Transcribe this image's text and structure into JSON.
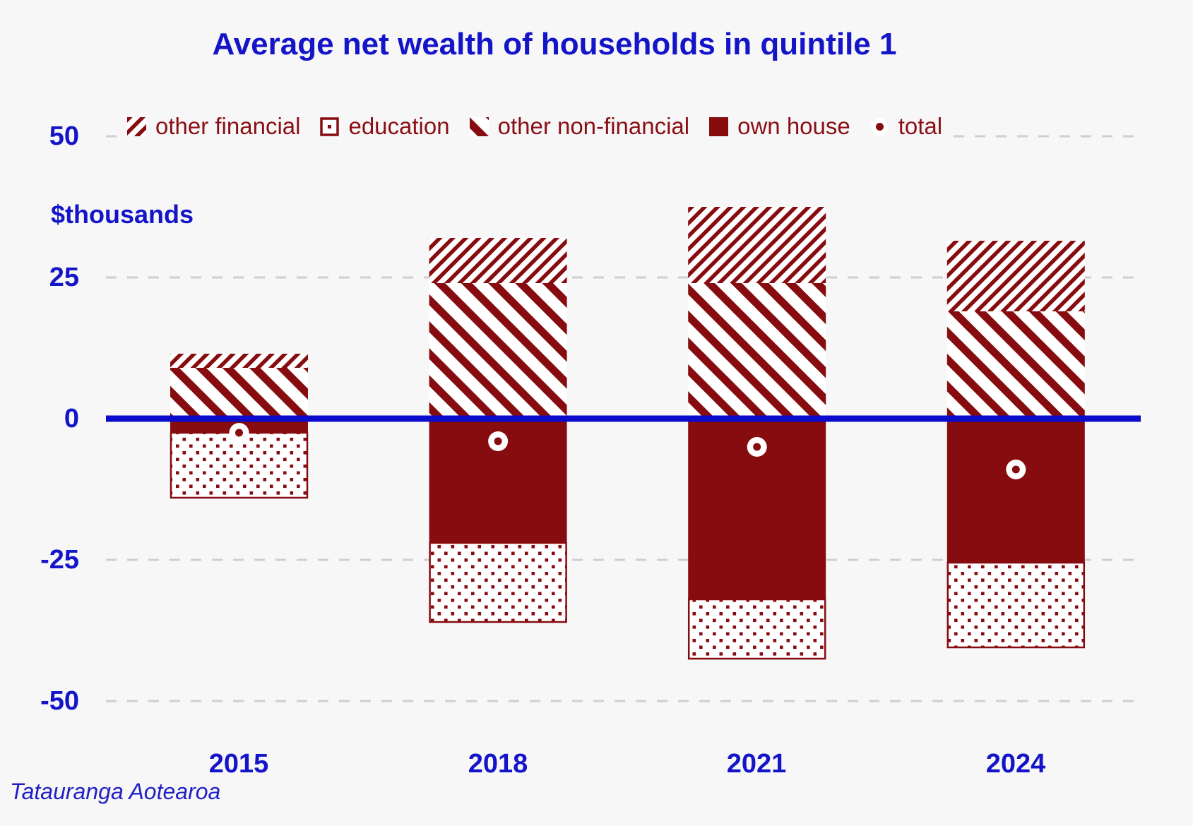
{
  "title": "Average net wealth of households in quintile 1",
  "footer": "Tatauranga Aotearoa",
  "y_axis": {
    "unit_label": "$thousands",
    "ticks": [
      "50",
      "25",
      "0",
      "-25",
      "-50"
    ]
  },
  "legend": [
    {
      "label": "other financial",
      "pattern": "diagonal-forward-hatch"
    },
    {
      "label": "education",
      "pattern": "dotted-square"
    },
    {
      "label": "other non-financial",
      "pattern": "diagonal-back-hatch"
    },
    {
      "label": "own house",
      "pattern": "solid"
    },
    {
      "label": "total",
      "pattern": "circle-marker"
    }
  ],
  "colors": {
    "accent_blue": "#1414c8",
    "zero_line_blue": "#0b0bcc",
    "maroon": "#870c10",
    "maroon_text": "#8a0f15",
    "background": "#f7f7f8",
    "gridline": "#cfcfcf",
    "pattern_background": "#ffffff"
  },
  "chart_data": {
    "type": "bar",
    "stacked": true,
    "title": "Average net wealth of households in quintile 1",
    "ylabel": "$thousands",
    "ylim": [
      -50,
      50
    ],
    "yticks": [
      50,
      25,
      0,
      -25,
      -50
    ],
    "grid": "horizontal-dashed",
    "legend_position": "top",
    "units": "$thousands",
    "categories": [
      "2015",
      "2018",
      "2021",
      "2024"
    ],
    "series": [
      {
        "name": "other financial",
        "type": "bar",
        "values": [
          2.5,
          8,
          13.5,
          12.5
        ]
      },
      {
        "name": "education",
        "type": "bar",
        "values": [
          -11.5,
          -14,
          -10.5,
          -15
        ]
      },
      {
        "name": "other non-financial",
        "type": "bar",
        "values": [
          9,
          24,
          24,
          19
        ]
      },
      {
        "name": "own house",
        "type": "bar",
        "values": [
          -2.5,
          -22,
          -32,
          -25.5
        ]
      },
      {
        "name": "total",
        "type": "scatter",
        "values": [
          -2.5,
          -4,
          -5,
          -9
        ]
      }
    ]
  }
}
